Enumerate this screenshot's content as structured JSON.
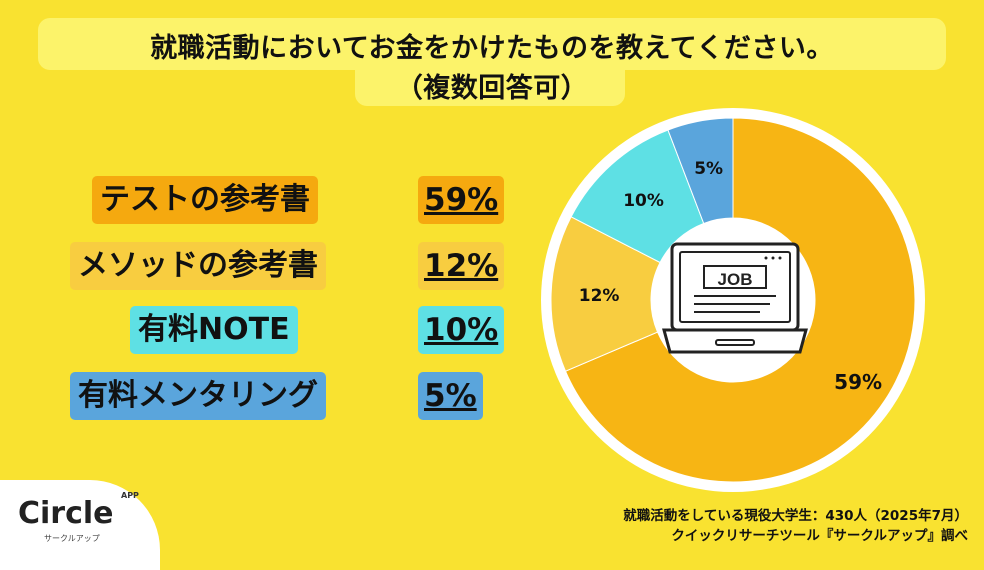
{
  "title": {
    "line1": "就職活動においてお金をかけたものを教えてください。",
    "line2": "（複数回答可）"
  },
  "legend": [
    {
      "label": "テストの参考書",
      "pct": "59%",
      "color": "#f5a90f"
    },
    {
      "label": "メソッドの参考書",
      "pct": "12%",
      "color": "#f8cd40"
    },
    {
      "label": "有料NOTE",
      "pct": "10%",
      "color": "#5ee0e4"
    },
    {
      "label": "有料メンタリング",
      "pct": "5%",
      "color": "#5aa5dc"
    }
  ],
  "chart_data": {
    "type": "pie",
    "categories": [
      "テストの参考書",
      "メソッドの参考書",
      "有料NOTE",
      "有料メンタリング"
    ],
    "values": [
      59,
      12,
      10,
      5
    ],
    "data_labels": [
      "59%",
      "12%",
      "10%",
      "5%"
    ],
    "colors": [
      "#f7b514",
      "#f8cd40",
      "#5ee0e4",
      "#5aa5dc"
    ],
    "unit": "%",
    "center_icon": "laptop-job-icon",
    "center_icon_text": "JOB"
  },
  "footnote": {
    "line1": "就職活動をしている現役大学生：430人（2025年7月）",
    "line2": "クイックリサーチツール『サークルアップ』調べ"
  },
  "logo": {
    "name": "Circle",
    "super": "APP",
    "sub": "サークルアップ"
  }
}
